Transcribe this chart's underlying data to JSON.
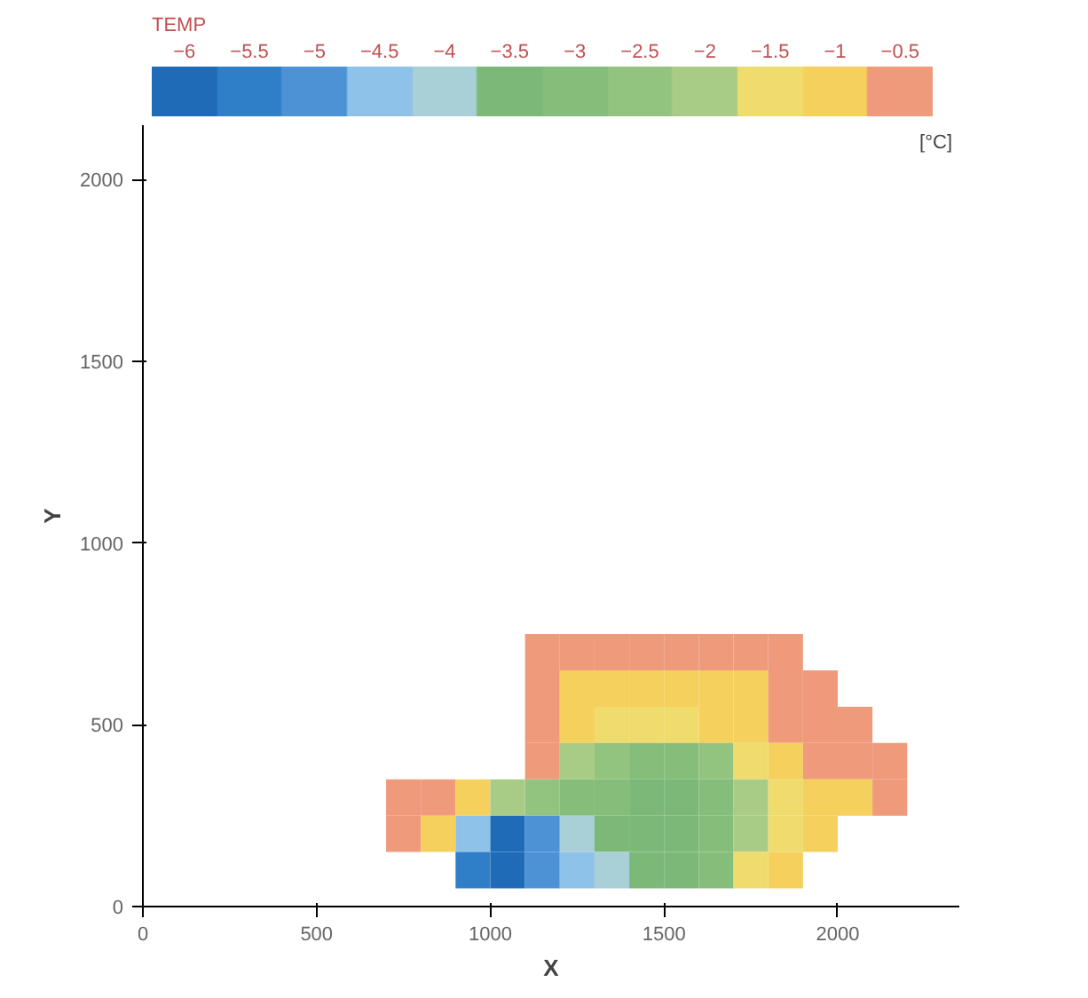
{
  "chart_data": {
    "type": "heatmap",
    "xlabel": "X",
    "ylabel": "Y",
    "clabel": "TEMP",
    "annotations": [
      "[°C]"
    ],
    "x": [
      650,
      750,
      850,
      950,
      1050,
      1150,
      1250,
      1350,
      1450,
      1550,
      1650,
      1750,
      1850,
      1950,
      2050,
      2150,
      2250
    ],
    "y": [
      700,
      600,
      500,
      400,
      300,
      200,
      100
    ],
    "cells": [
      [
        null,
        null,
        null,
        null,
        null,
        -0.5,
        -0.5,
        -0.5,
        -0.5,
        -0.5,
        -0.5,
        -0.5,
        -0.5,
        null,
        null,
        null,
        null
      ],
      [
        null,
        null,
        null,
        null,
        null,
        -0.5,
        -1,
        -1,
        -1,
        -1,
        -1,
        -1,
        -0.5,
        -0.5,
        null,
        null,
        null
      ],
      [
        null,
        null,
        null,
        null,
        null,
        -0.5,
        -1,
        -1.5,
        -1.5,
        -1.5,
        -1,
        -1,
        -0.5,
        -0.5,
        -0.5,
        null,
        null
      ],
      [
        null,
        null,
        null,
        null,
        null,
        -0.5,
        -2,
        -2.5,
        -3,
        -3,
        -2.5,
        -1.5,
        -1,
        -0.5,
        -0.5,
        -0.5,
        null
      ],
      [
        null,
        -0.5,
        -0.5,
        -1,
        -2,
        -2.5,
        -3,
        -3,
        -3.5,
        -3.5,
        -3,
        -2,
        -1.5,
        -1,
        -1,
        -0.5,
        null
      ],
      [
        null,
        -0.5,
        -1,
        -4.5,
        -6,
        -5,
        -4,
        -3.5,
        -3.5,
        -3.5,
        -3,
        -2,
        -1.5,
        -1,
        null,
        null,
        null
      ],
      [
        null,
        null,
        null,
        -5.5,
        -6,
        -5,
        -4.5,
        -4,
        -3.5,
        -3.5,
        -3,
        -1.5,
        -1,
        null,
        null,
        null,
        null
      ]
    ],
    "colors": [
      "#1f6bb8",
      "#2f7ec8",
      "#4c92d4",
      "#8ec2e8",
      "#a8d0d6",
      "#7cb877",
      "#85bd7b",
      "#93c47f",
      "#a8cc86",
      "#f0dc6c",
      "#f5d05c",
      "#f09a7c"
    ],
    "clim": [
      -6.25,
      -0.25
    ],
    "cticks": [
      -6,
      -5.5,
      -5,
      -4.5,
      -4,
      -3.5,
      -3,
      -2.5,
      -2,
      -1.5,
      -1,
      -0.5
    ],
    "xlim": [
      0,
      2350
    ],
    "ylim": [
      0,
      2150
    ],
    "xticks": [
      0,
      500,
      1000,
      1500,
      2000
    ],
    "yticks": [
      0,
      500,
      1000,
      1500,
      2000
    ],
    "grid": false
  }
}
